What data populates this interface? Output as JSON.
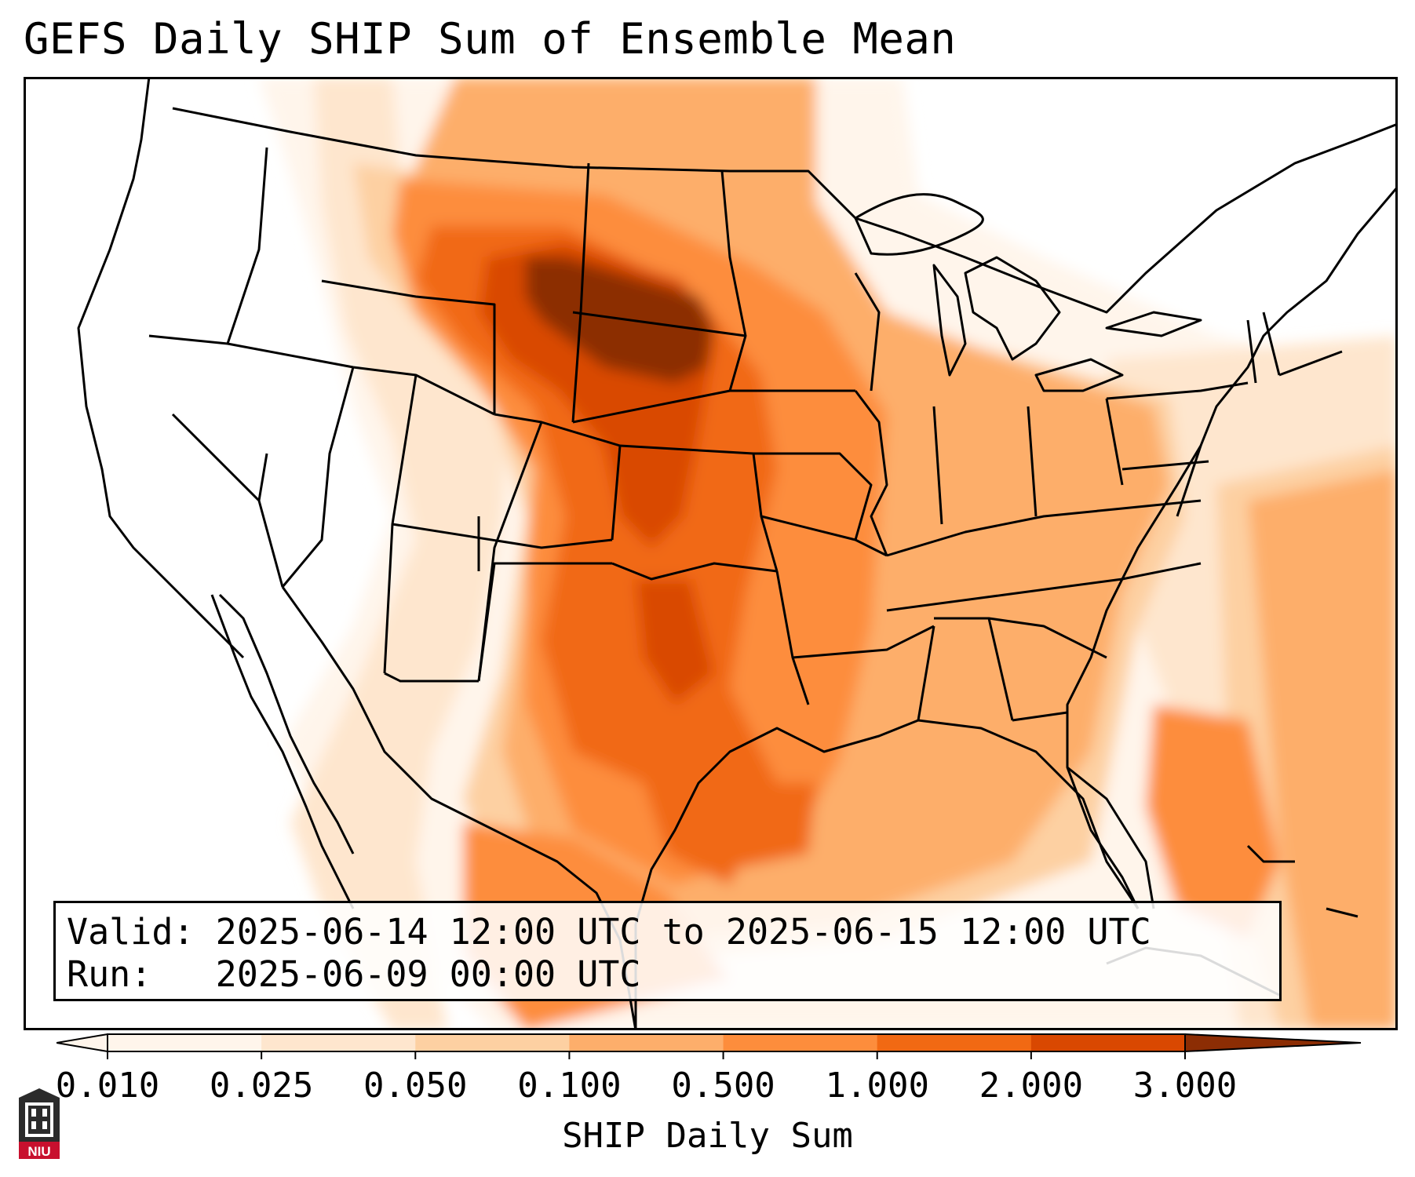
{
  "title": "GEFS Daily SHIP Sum of Ensemble Mean",
  "info_box": {
    "valid_line": "Valid: 2025-06-14 12:00 UTC to 2025-06-15 12:00 UTC",
    "run_line": "Run:   2025-06-09 00:00 UTC"
  },
  "colorbar": {
    "label": "SHIP Daily Sum",
    "ticks": [
      "0.010",
      "0.025",
      "0.050",
      "0.100",
      "0.500",
      "1.000",
      "2.000",
      "3.000"
    ],
    "colors": [
      "#fff5eb",
      "#fee6ce",
      "#fdd0a2",
      "#fdae6b",
      "#fd8d3c",
      "#f16913",
      "#d94801",
      "#8c2d04"
    ],
    "extend": "both"
  },
  "logo": {
    "text": "NIU"
  }
}
